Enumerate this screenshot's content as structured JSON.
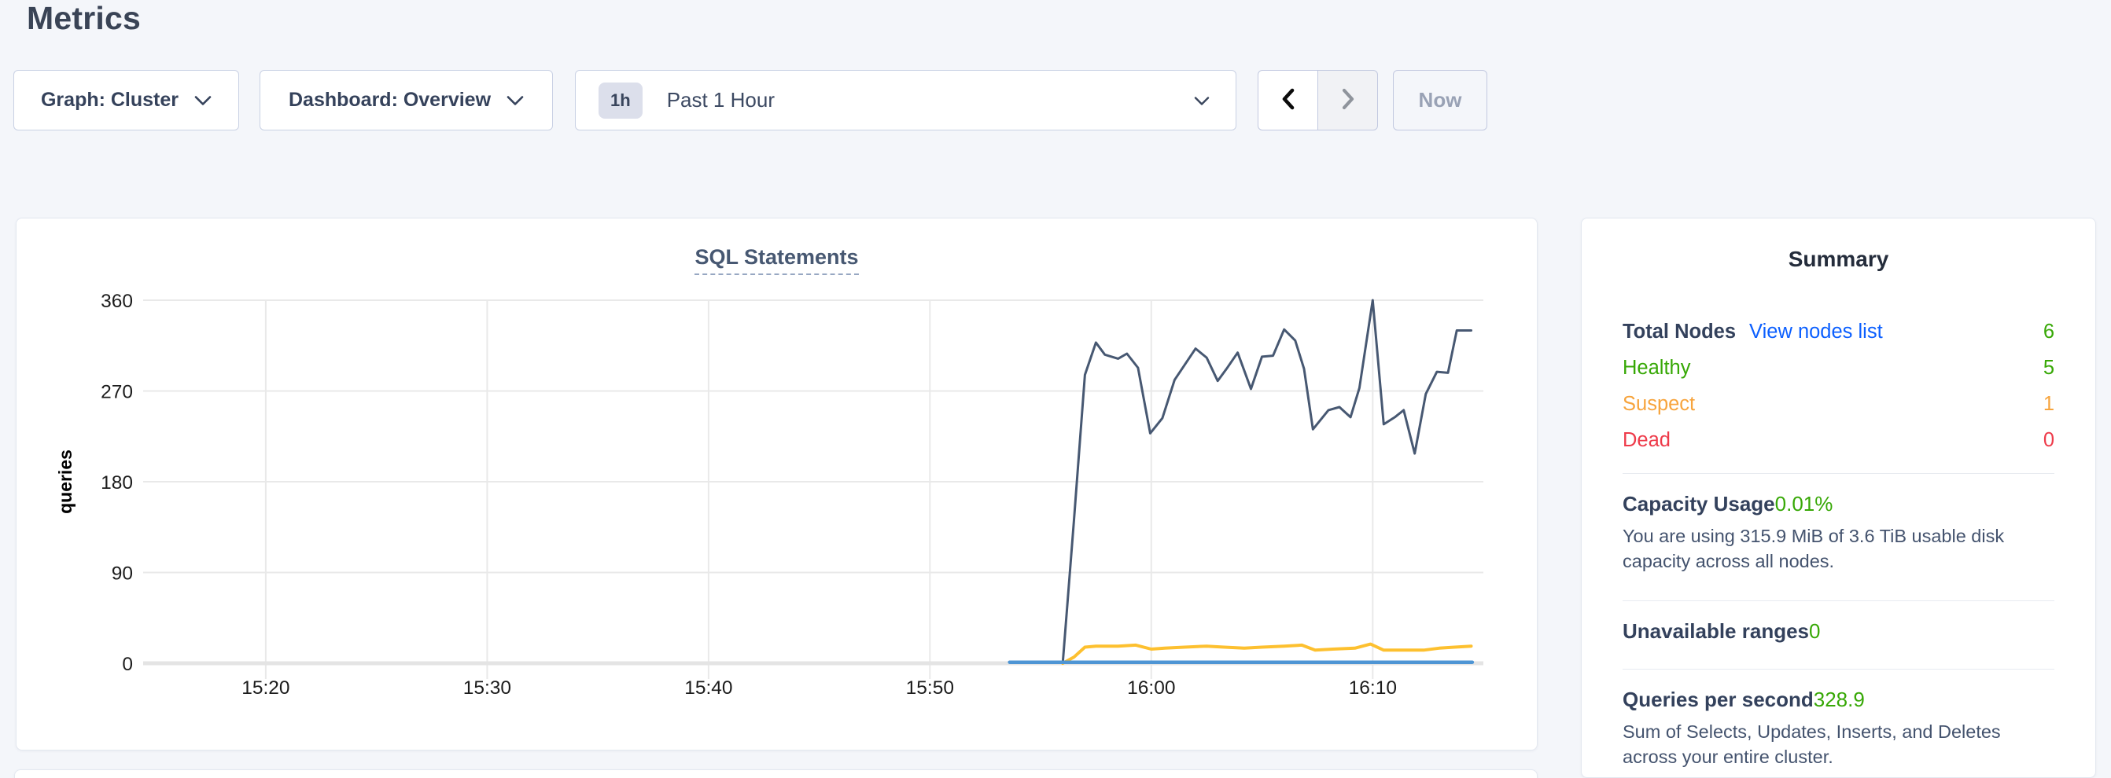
{
  "header": {
    "title": "Metrics"
  },
  "controls": {
    "graph_dropdown": {
      "label": "Graph: Cluster"
    },
    "dashboard_dropdown": {
      "label": "Dashboard: Overview"
    },
    "time_selector": {
      "badge": "1h",
      "label": "Past 1 Hour"
    },
    "now_button": {
      "label": "Now"
    }
  },
  "chart_card": {
    "title": "SQL Statements"
  },
  "chart_data": {
    "type": "line",
    "title": "SQL Statements",
    "xlabel": "",
    "ylabel": "queries",
    "ylim": [
      0,
      360
    ],
    "y_ticks": [
      0,
      90,
      180,
      270,
      360
    ],
    "x_domain_minutes": [
      14.46,
      75.0
    ],
    "x_ticks": [
      {
        "t": 20,
        "label": "15:20"
      },
      {
        "t": 30,
        "label": "15:30"
      },
      {
        "t": 40,
        "label": "15:40"
      },
      {
        "t": 50,
        "label": "15:50"
      },
      {
        "t": 60,
        "label": "16:00"
      },
      {
        "t": 70,
        "label": "16:10"
      }
    ],
    "grid": true,
    "legend": "none",
    "series": [
      {
        "name": "navy-series",
        "color": "#475872",
        "width": 3,
        "points": [
          [
            56.0,
            0
          ],
          [
            56.5,
            140
          ],
          [
            57.0,
            286
          ],
          [
            57.5,
            318
          ],
          [
            57.9,
            306
          ],
          [
            58.5,
            302
          ],
          [
            58.9,
            307
          ],
          [
            59.4,
            293
          ],
          [
            59.95,
            228
          ],
          [
            60.5,
            243
          ],
          [
            61.05,
            281
          ],
          [
            62.0,
            312
          ],
          [
            62.5,
            303
          ],
          [
            63.0,
            280
          ],
          [
            63.4,
            292
          ],
          [
            63.9,
            308
          ],
          [
            64.5,
            272
          ],
          [
            65.0,
            304
          ],
          [
            65.5,
            305
          ],
          [
            66.0,
            331
          ],
          [
            66.5,
            320
          ],
          [
            66.9,
            292
          ],
          [
            67.3,
            232
          ],
          [
            68.0,
            251
          ],
          [
            68.5,
            254
          ],
          [
            69.0,
            244
          ],
          [
            69.4,
            273
          ],
          [
            70.0,
            360
          ],
          [
            70.5,
            237
          ],
          [
            71.0,
            244
          ],
          [
            71.4,
            251
          ],
          [
            71.9,
            208
          ],
          [
            72.4,
            267
          ],
          [
            72.9,
            289
          ],
          [
            73.4,
            288
          ],
          [
            73.8,
            330
          ],
          [
            74.45,
            330
          ]
        ]
      },
      {
        "name": "yellow-series",
        "color": "#fdc02f",
        "width": 4,
        "points": [
          [
            56.0,
            0
          ],
          [
            56.5,
            6
          ],
          [
            57.0,
            16
          ],
          [
            57.5,
            17
          ],
          [
            58.5,
            17
          ],
          [
            59.3,
            18
          ],
          [
            60.0,
            14
          ],
          [
            60.6,
            15
          ],
          [
            61.5,
            16
          ],
          [
            62.5,
            17
          ],
          [
            63.3,
            16
          ],
          [
            64.2,
            15
          ],
          [
            65.0,
            16
          ],
          [
            66.0,
            17
          ],
          [
            66.8,
            18
          ],
          [
            67.4,
            13
          ],
          [
            68.2,
            14
          ],
          [
            69.2,
            15
          ],
          [
            69.9,
            19
          ],
          [
            70.5,
            13
          ],
          [
            71.5,
            13
          ],
          [
            72.3,
            13
          ],
          [
            73.0,
            15
          ],
          [
            73.7,
            16
          ],
          [
            74.45,
            17
          ]
        ]
      },
      {
        "name": "blue-series",
        "color": "#4e95d4",
        "width": 4.5,
        "points": [
          [
            53.6,
            1
          ],
          [
            74.5,
            1
          ]
        ]
      }
    ]
  },
  "summary": {
    "title": "Summary",
    "total_nodes": {
      "label": "Total Nodes",
      "link": "View nodes list",
      "value": "6"
    },
    "healthy": {
      "label": "Healthy",
      "value": "5"
    },
    "suspect": {
      "label": "Suspect",
      "value": "1"
    },
    "dead": {
      "label": "Dead",
      "value": "0"
    },
    "capacity": {
      "label": "Capacity Usage",
      "value": "0.01%",
      "description": "You are using 315.9 MiB of 3.6 TiB usable disk capacity across all nodes."
    },
    "unavailable_ranges": {
      "label": "Unavailable ranges",
      "value": "0"
    },
    "qps": {
      "label": "Queries per second",
      "value": "328.9",
      "description": "Sum of Selects, Updates, Inserts, and Deletes across your entire cluster."
    }
  },
  "colors": {
    "green": "#37a806",
    "orange": "#f7a43d",
    "red": "#ee3b4a",
    "link": "#0b5fff",
    "label_dark": "#33415c",
    "navy_line": "#475872",
    "yellow_line": "#fdc02f",
    "blue_line": "#4e95d4"
  }
}
